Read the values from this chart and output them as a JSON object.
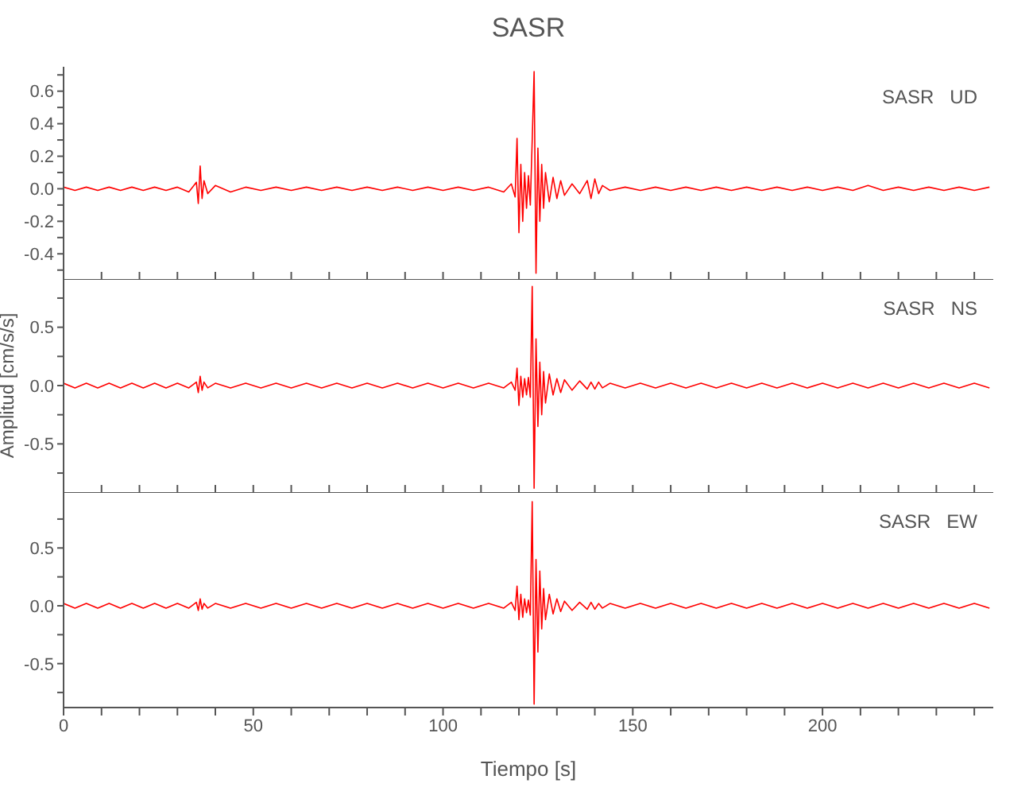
{
  "chart_data": [
    {
      "type": "line",
      "title": "SASR",
      "annotations": [
        "SASR   UD"
      ],
      "tick_labels": "y",
      "x": [
        0,
        3,
        6,
        9,
        12,
        15,
        18,
        21,
        24,
        27,
        30,
        33,
        35,
        35.5,
        36,
        36.5,
        37,
        38,
        40,
        44,
        48,
        52,
        56,
        60,
        64,
        68,
        72,
        76,
        80,
        84,
        88,
        92,
        96,
        100,
        104,
        108,
        112,
        116,
        118,
        119,
        119.5,
        120,
        120.5,
        121,
        121.5,
        122,
        122.5,
        123,
        123.5,
        124,
        124.5,
        125,
        125.5,
        126,
        126.5,
        127,
        128,
        129,
        130,
        131,
        132,
        134,
        136,
        138,
        139,
        140,
        141,
        142,
        144,
        148,
        152,
        156,
        160,
        164,
        168,
        172,
        176,
        180,
        184,
        188,
        192,
        196,
        200,
        204,
        208,
        212,
        216,
        220,
        224,
        228,
        232,
        236,
        240,
        244
      ],
      "series": [
        {
          "color": "#ff0000",
          "values": [
            0.01,
            -0.01,
            0.01,
            -0.01,
            0.01,
            -0.01,
            0.01,
            -0.01,
            0.01,
            -0.01,
            0.01,
            -0.02,
            0.04,
            -0.09,
            0.14,
            -0.06,
            0.05,
            -0.03,
            0.02,
            -0.02,
            0.01,
            -0.01,
            0.01,
            -0.01,
            0.01,
            -0.01,
            0.01,
            -0.01,
            0.01,
            -0.01,
            0.01,
            -0.01,
            0.01,
            -0.01,
            0.01,
            -0.01,
            0.01,
            -0.02,
            0.03,
            -0.05,
            0.31,
            -0.27,
            0.15,
            -0.2,
            0.1,
            -0.12,
            0.08,
            -0.1,
            0.3,
            0.72,
            -0.52,
            0.25,
            -0.2,
            0.15,
            -0.12,
            0.1,
            -0.08,
            0.07,
            -0.06,
            0.05,
            -0.04,
            0.03,
            -0.03,
            0.05,
            -0.06,
            0.06,
            -0.03,
            0.02,
            -0.01,
            0.01,
            -0.01,
            0.01,
            -0.01,
            0.01,
            -0.01,
            0.01,
            -0.01,
            0.01,
            -0.01,
            0.01,
            -0.01,
            0.01,
            -0.01,
            0.01,
            -0.01,
            0.02,
            -0.01,
            0.01,
            -0.01,
            0.01,
            -0.01,
            0.01,
            -0.01,
            0.01
          ]
        }
      ],
      "xlim": [
        0,
        245
      ],
      "xticks": [
        0,
        {
          "value": 10,
          "label": null
        },
        {
          "value": 20,
          "label": null
        },
        {
          "value": 30,
          "label": null
        },
        {
          "value": 40,
          "label": null
        },
        50,
        {
          "value": 60,
          "label": null
        },
        {
          "value": 70,
          "label": null
        },
        {
          "value": 80,
          "label": null
        },
        {
          "value": 90,
          "label": null
        },
        100,
        {
          "value": 110,
          "label": null
        },
        {
          "value": 120,
          "label": null
        },
        {
          "value": 130,
          "label": null
        },
        {
          "value": 140,
          "label": null
        },
        150,
        {
          "value": 160,
          "label": null
        },
        {
          "value": 170,
          "label": null
        },
        {
          "value": 180,
          "label": null
        },
        {
          "value": 190,
          "label": null
        },
        200,
        {
          "value": 210,
          "label": null
        },
        {
          "value": 220,
          "label": null
        },
        {
          "value": 230,
          "label": null
        },
        {
          "value": 240,
          "label": null
        }
      ],
      "ylim": [
        -0.56,
        0.75
      ],
      "yticks": [
        {
          "value": -0.5,
          "label": null
        },
        {
          "value": -0.4,
          "label": "-0.4"
        },
        {
          "value": -0.3,
          "label": null
        },
        {
          "value": -0.2,
          "label": "-0.2"
        },
        {
          "value": -0.1,
          "label": null
        },
        {
          "value": 0,
          "label": "0.0"
        },
        {
          "value": 0.1,
          "label": null
        },
        {
          "value": 0.2,
          "label": "0.2"
        },
        {
          "value": 0.3,
          "label": null
        },
        {
          "value": 0.4,
          "label": "0.4"
        },
        {
          "value": 0.5,
          "label": null
        },
        {
          "value": 0.6,
          "label": "0.6"
        },
        {
          "value": 0.7,
          "label": null
        }
      ]
    },
    {
      "type": "line",
      "ylabel": "Amplitud [cm/s/s]",
      "annotations": [
        "SASR   NS"
      ],
      "tick_labels": "y",
      "x": [
        0,
        3,
        6,
        9,
        12,
        15,
        18,
        21,
        24,
        27,
        30,
        33,
        35,
        35.5,
        36,
        36.5,
        37,
        38,
        40,
        44,
        48,
        52,
        56,
        60,
        64,
        68,
        72,
        76,
        80,
        84,
        88,
        92,
        96,
        100,
        104,
        108,
        112,
        116,
        118,
        119,
        119.5,
        120,
        120.5,
        121,
        121.5,
        122,
        122.5,
        123,
        123.5,
        124,
        124.5,
        125,
        125.5,
        126,
        126.5,
        127,
        128,
        129,
        130,
        131,
        132,
        134,
        136,
        138,
        139,
        140,
        141,
        142,
        144,
        148,
        152,
        156,
        160,
        164,
        168,
        172,
        176,
        180,
        184,
        188,
        192,
        196,
        200,
        204,
        208,
        212,
        216,
        220,
        224,
        228,
        232,
        236,
        240,
        244
      ],
      "series": [
        {
          "color": "#ff0000",
          "values": [
            0.02,
            -0.02,
            0.02,
            -0.02,
            0.02,
            -0.02,
            0.02,
            -0.02,
            0.02,
            -0.02,
            0.02,
            -0.02,
            0.03,
            -0.06,
            0.08,
            -0.04,
            0.03,
            -0.02,
            0.02,
            -0.02,
            0.02,
            -0.02,
            0.02,
            -0.02,
            0.02,
            -0.02,
            0.02,
            -0.02,
            0.02,
            -0.02,
            0.02,
            -0.02,
            0.02,
            -0.02,
            0.02,
            -0.02,
            0.02,
            -0.02,
            0.03,
            -0.04,
            0.15,
            -0.17,
            0.08,
            -0.1,
            0.06,
            -0.08,
            0.07,
            -0.1,
            0.85,
            -0.88,
            0.4,
            -0.35,
            0.2,
            -0.25,
            0.12,
            -0.15,
            0.1,
            -0.08,
            0.06,
            -0.06,
            0.05,
            -0.04,
            0.04,
            -0.03,
            0.03,
            -0.03,
            0.03,
            -0.02,
            0.02,
            -0.02,
            0.02,
            -0.02,
            0.02,
            -0.02,
            0.02,
            -0.02,
            0.02,
            -0.02,
            0.02,
            -0.02,
            0.02,
            -0.02,
            0.02,
            -0.02,
            0.02,
            -0.02,
            0.02,
            -0.02,
            0.02,
            -0.02,
            0.02,
            -0.02,
            0.02,
            -0.02
          ]
        }
      ],
      "xlim": [
        0,
        245
      ],
      "xticks": [
        0,
        {
          "value": 10,
          "label": null
        },
        {
          "value": 20,
          "label": null
        },
        {
          "value": 30,
          "label": null
        },
        {
          "value": 40,
          "label": null
        },
        50,
        {
          "value": 60,
          "label": null
        },
        {
          "value": 70,
          "label": null
        },
        {
          "value": 80,
          "label": null
        },
        {
          "value": 90,
          "label": null
        },
        100,
        {
          "value": 110,
          "label": null
        },
        {
          "value": 120,
          "label": null
        },
        {
          "value": 130,
          "label": null
        },
        {
          "value": 140,
          "label": null
        },
        150,
        {
          "value": 160,
          "label": null
        },
        {
          "value": 170,
          "label": null
        },
        {
          "value": 180,
          "label": null
        },
        {
          "value": 190,
          "label": null
        },
        200,
        {
          "value": 210,
          "label": null
        },
        {
          "value": 220,
          "label": null
        },
        {
          "value": 230,
          "label": null
        },
        {
          "value": 240,
          "label": null
        }
      ],
      "ylim": [
        -0.92,
        0.92
      ],
      "yticks": [
        {
          "value": -0.75,
          "label": null
        },
        {
          "value": -0.5,
          "label": "-0.5"
        },
        {
          "value": -0.25,
          "label": null
        },
        {
          "value": 0,
          "label": "0.0"
        },
        {
          "value": 0.25,
          "label": null
        },
        {
          "value": 0.5,
          "label": "0.5"
        },
        {
          "value": 0.75,
          "label": null
        }
      ]
    },
    {
      "type": "line",
      "xlabel": "Tiempo [s]",
      "annotations": [
        "SASR   EW"
      ],
      "x": [
        0,
        3,
        6,
        9,
        12,
        15,
        18,
        21,
        24,
        27,
        30,
        33,
        35,
        35.5,
        36,
        36.5,
        37,
        38,
        40,
        44,
        48,
        52,
        56,
        60,
        64,
        68,
        72,
        76,
        80,
        84,
        88,
        92,
        96,
        100,
        104,
        108,
        112,
        116,
        118,
        119,
        119.5,
        120,
        120.5,
        121,
        121.5,
        122,
        122.5,
        123,
        123.5,
        124,
        124.5,
        125,
        125.5,
        126,
        126.5,
        127,
        128,
        129,
        130,
        131,
        132,
        134,
        136,
        138,
        139,
        140,
        141,
        142,
        144,
        148,
        152,
        156,
        160,
        164,
        168,
        172,
        176,
        180,
        184,
        188,
        192,
        196,
        200,
        204,
        208,
        212,
        216,
        220,
        224,
        228,
        232,
        236,
        240,
        244
      ],
      "series": [
        {
          "color": "#ff0000",
          "values": [
            0.02,
            -0.02,
            0.02,
            -0.02,
            0.02,
            -0.02,
            0.02,
            -0.02,
            0.02,
            -0.02,
            0.02,
            -0.02,
            0.03,
            -0.04,
            0.06,
            -0.03,
            0.02,
            -0.02,
            0.02,
            -0.02,
            0.02,
            -0.02,
            0.02,
            -0.02,
            0.02,
            -0.02,
            0.02,
            -0.02,
            0.02,
            -0.02,
            0.02,
            -0.02,
            0.02,
            -0.02,
            0.02,
            -0.02,
            0.02,
            -0.02,
            0.03,
            -0.04,
            0.17,
            -0.12,
            0.1,
            -0.1,
            0.06,
            -0.06,
            0.05,
            -0.08,
            0.9,
            -0.85,
            0.4,
            -0.4,
            0.3,
            -0.2,
            0.15,
            -0.12,
            0.1,
            -0.07,
            0.06,
            -0.05,
            0.04,
            -0.04,
            0.03,
            -0.03,
            0.03,
            -0.03,
            0.02,
            -0.02,
            0.02,
            -0.02,
            0.02,
            -0.02,
            0.02,
            -0.02,
            0.02,
            -0.02,
            0.02,
            -0.02,
            0.02,
            -0.02,
            0.02,
            -0.02,
            0.02,
            -0.02,
            0.02,
            -0.02,
            0.02,
            -0.02,
            0.02,
            -0.02,
            0.02,
            -0.02,
            0.02,
            -0.02
          ]
        }
      ],
      "xlim": [
        0,
        245
      ],
      "xticks": [
        0,
        {
          "value": 10,
          "label": null
        },
        {
          "value": 20,
          "label": null
        },
        {
          "value": 30,
          "label": null
        },
        {
          "value": 40,
          "label": null
        },
        50,
        {
          "value": 60,
          "label": null
        },
        {
          "value": 70,
          "label": null
        },
        {
          "value": 80,
          "label": null
        },
        {
          "value": 90,
          "label": null
        },
        100,
        {
          "value": 110,
          "label": null
        },
        {
          "value": 120,
          "label": null
        },
        {
          "value": 130,
          "label": null
        },
        {
          "value": 140,
          "label": null
        },
        150,
        {
          "value": 160,
          "label": null
        },
        {
          "value": 170,
          "label": null
        },
        {
          "value": 180,
          "label": null
        },
        {
          "value": 190,
          "label": null
        },
        200,
        {
          "value": 210,
          "label": null
        },
        {
          "value": 220,
          "label": null
        },
        {
          "value": 230,
          "label": null
        },
        {
          "value": 240,
          "label": null
        }
      ],
      "ylim": [
        -0.88,
        0.99
      ],
      "yticks": [
        {
          "value": -0.75,
          "label": null
        },
        {
          "value": -0.5,
          "label": "-0.5"
        },
        {
          "value": -0.25,
          "label": null
        },
        {
          "value": 0,
          "label": "0.0"
        },
        {
          "value": 0.25,
          "label": null
        },
        {
          "value": 0.5,
          "label": "0.5"
        },
        {
          "value": 0.75,
          "label": null
        }
      ]
    }
  ]
}
